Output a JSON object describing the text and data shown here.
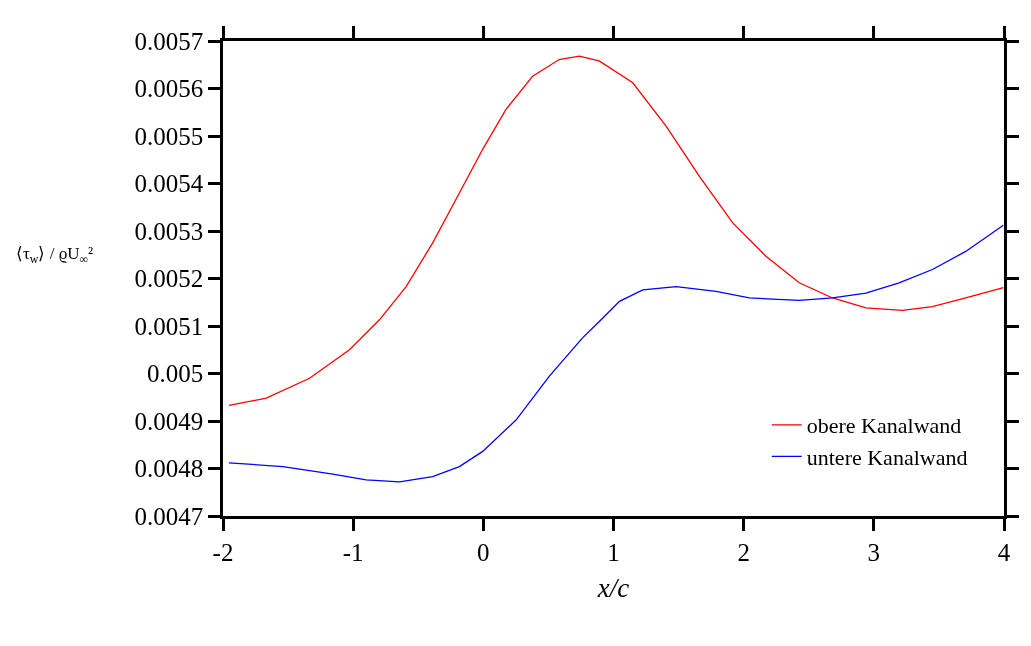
{
  "chart_data": {
    "type": "line",
    "xlabel": "x/c",
    "ylabel": "⟨τ$_{w}$⟩ / ϱU$_{∞}$²",
    "xlim": [
      -2,
      4
    ],
    "xticks": [
      -2,
      -1,
      0,
      1,
      2,
      3,
      4
    ],
    "ylim": [
      0.0047,
      0.0057
    ],
    "yticks": [
      0.0047,
      0.0048,
      0.0049,
      0.005,
      0.0051,
      0.0052,
      0.0053,
      0.0054,
      0.0055,
      0.0056,
      0.0057
    ],
    "legend": "bottom right",
    "marker": "none",
    "line_style": "solid",
    "series": [
      {
        "name": "obere Kanalwand",
        "color": "#ff0000",
        "x": [
          -1.954,
          -1.668,
          -1.335,
          -1.028,
          -0.798,
          -0.593,
          -0.389,
          -0.184,
          -0.005,
          0.174,
          0.379,
          0.583,
          0.737,
          0.89,
          1.148,
          1.404,
          1.66,
          1.916,
          2.171,
          2.427,
          2.683,
          2.939,
          3.22,
          3.45,
          3.706,
          3.995
        ],
        "values": [
          0.004933,
          0.004948,
          0.00499,
          0.00505,
          0.005113,
          0.005183,
          0.005275,
          0.00538,
          0.005472,
          0.005556,
          0.005626,
          0.005661,
          0.005668,
          0.005658,
          0.005612,
          0.005521,
          0.005415,
          0.005317,
          0.005247,
          0.005191,
          0.005159,
          0.005138,
          0.005133,
          0.005141,
          0.005159,
          0.005181
        ]
      },
      {
        "name": "untere Kanalwand",
        "color": "#0000ff",
        "x": [
          -1.954,
          -1.54,
          -1.156,
          -0.9,
          -0.644,
          -0.389,
          -0.184,
          -0.005,
          0.251,
          0.506,
          0.762,
          0.893,
          1.046,
          1.225,
          1.481,
          1.788,
          2.043,
          2.427,
          2.683,
          2.939,
          3.194,
          3.45,
          3.706,
          3.995
        ],
        "values": [
          0.004812,
          0.004804,
          0.004788,
          0.004776,
          0.004772,
          0.004783,
          0.004804,
          0.004836,
          0.004902,
          0.004994,
          0.005075,
          0.00511,
          0.005152,
          0.005176,
          0.005183,
          0.005173,
          0.005159,
          0.005154,
          0.005159,
          0.005169,
          0.005191,
          0.005219,
          0.005257,
          0.005312
        ]
      }
    ]
  }
}
